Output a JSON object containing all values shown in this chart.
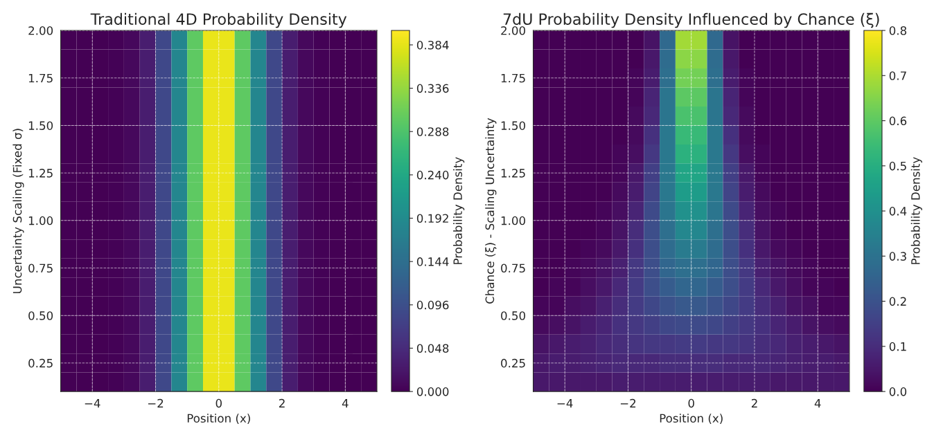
{
  "chart_data": [
    {
      "type": "heatmap",
      "title": "Traditional 4D Probability Density",
      "xlabel": "Position (x)",
      "ylabel": "Uncertainty Scaling (Fixed σ)",
      "clabel": "Probability Density",
      "x": [
        -4.75,
        -4.25,
        -3.75,
        -3.25,
        -2.75,
        -2.25,
        -1.75,
        -1.25,
        -0.75,
        -0.25,
        0.25,
        0.75,
        1.25,
        1.75,
        2.25,
        2.75,
        3.25,
        3.75,
        4.25,
        4.75
      ],
      "y": [
        0.15,
        0.25,
        0.35,
        0.45,
        0.55,
        0.65,
        0.75,
        0.85,
        0.95,
        1.05,
        1.15,
        1.25,
        1.35,
        1.45,
        1.55,
        1.65,
        1.75,
        1.85,
        1.95
      ],
      "cells": [
        [
          0,
          0,
          0,
          0.002,
          0.009,
          0.032,
          0.086,
          0.183,
          0.301,
          0.387,
          0.387,
          0.301,
          0.183,
          0.086,
          0.032,
          0.009,
          0.002,
          0,
          0,
          0
        ],
        [
          0,
          0,
          0,
          0.002,
          0.009,
          0.032,
          0.086,
          0.183,
          0.301,
          0.387,
          0.387,
          0.301,
          0.183,
          0.086,
          0.032,
          0.009,
          0.002,
          0,
          0,
          0
        ],
        [
          0,
          0,
          0,
          0.002,
          0.009,
          0.032,
          0.086,
          0.183,
          0.301,
          0.387,
          0.387,
          0.301,
          0.183,
          0.086,
          0.032,
          0.009,
          0.002,
          0,
          0,
          0
        ],
        [
          0,
          0,
          0,
          0.002,
          0.009,
          0.032,
          0.086,
          0.183,
          0.301,
          0.387,
          0.387,
          0.301,
          0.183,
          0.086,
          0.032,
          0.009,
          0.002,
          0,
          0,
          0
        ],
        [
          0,
          0,
          0,
          0.002,
          0.009,
          0.032,
          0.086,
          0.183,
          0.301,
          0.387,
          0.387,
          0.301,
          0.183,
          0.086,
          0.032,
          0.009,
          0.002,
          0,
          0,
          0
        ],
        [
          0,
          0,
          0,
          0.002,
          0.009,
          0.032,
          0.086,
          0.183,
          0.301,
          0.387,
          0.387,
          0.301,
          0.183,
          0.086,
          0.032,
          0.009,
          0.002,
          0,
          0,
          0
        ],
        [
          0,
          0,
          0,
          0.002,
          0.009,
          0.032,
          0.086,
          0.183,
          0.301,
          0.387,
          0.387,
          0.301,
          0.183,
          0.086,
          0.032,
          0.009,
          0.002,
          0,
          0,
          0
        ],
        [
          0,
          0,
          0,
          0.002,
          0.009,
          0.032,
          0.086,
          0.183,
          0.301,
          0.387,
          0.387,
          0.301,
          0.183,
          0.086,
          0.032,
          0.009,
          0.002,
          0,
          0,
          0
        ],
        [
          0,
          0,
          0,
          0.002,
          0.009,
          0.032,
          0.086,
          0.183,
          0.301,
          0.387,
          0.387,
          0.301,
          0.183,
          0.086,
          0.032,
          0.009,
          0.002,
          0,
          0,
          0
        ],
        [
          0,
          0,
          0,
          0.002,
          0.009,
          0.032,
          0.086,
          0.183,
          0.301,
          0.387,
          0.387,
          0.301,
          0.183,
          0.086,
          0.032,
          0.009,
          0.002,
          0,
          0,
          0
        ],
        [
          0,
          0,
          0,
          0.002,
          0.009,
          0.032,
          0.086,
          0.183,
          0.301,
          0.387,
          0.387,
          0.301,
          0.183,
          0.086,
          0.032,
          0.009,
          0.002,
          0,
          0,
          0
        ],
        [
          0,
          0,
          0,
          0.002,
          0.009,
          0.032,
          0.086,
          0.183,
          0.301,
          0.387,
          0.387,
          0.301,
          0.183,
          0.086,
          0.032,
          0.009,
          0.002,
          0,
          0,
          0
        ],
        [
          0,
          0,
          0,
          0.002,
          0.009,
          0.032,
          0.086,
          0.183,
          0.301,
          0.387,
          0.387,
          0.301,
          0.183,
          0.086,
          0.032,
          0.009,
          0.002,
          0,
          0,
          0
        ],
        [
          0,
          0,
          0,
          0.002,
          0.009,
          0.032,
          0.086,
          0.183,
          0.301,
          0.387,
          0.387,
          0.301,
          0.183,
          0.086,
          0.032,
          0.009,
          0.002,
          0,
          0,
          0
        ],
        [
          0,
          0,
          0,
          0.002,
          0.009,
          0.032,
          0.086,
          0.183,
          0.301,
          0.387,
          0.387,
          0.301,
          0.183,
          0.086,
          0.032,
          0.009,
          0.002,
          0,
          0,
          0
        ],
        [
          0,
          0,
          0,
          0.002,
          0.009,
          0.032,
          0.086,
          0.183,
          0.301,
          0.387,
          0.387,
          0.301,
          0.183,
          0.086,
          0.032,
          0.009,
          0.002,
          0,
          0,
          0
        ],
        [
          0,
          0,
          0,
          0.002,
          0.009,
          0.032,
          0.086,
          0.183,
          0.301,
          0.387,
          0.387,
          0.301,
          0.183,
          0.086,
          0.032,
          0.009,
          0.002,
          0,
          0,
          0
        ],
        [
          0,
          0,
          0,
          0.002,
          0.009,
          0.032,
          0.086,
          0.183,
          0.301,
          0.387,
          0.387,
          0.301,
          0.183,
          0.086,
          0.032,
          0.009,
          0.002,
          0,
          0,
          0
        ],
        [
          0,
          0,
          0,
          0.002,
          0.009,
          0.032,
          0.086,
          0.183,
          0.301,
          0.387,
          0.387,
          0.301,
          0.183,
          0.086,
          0.032,
          0.009,
          0.002,
          0,
          0,
          0
        ]
      ],
      "xlim": [
        -5,
        5
      ],
      "xticks": [
        -4,
        -2,
        0,
        2,
        4
      ],
      "ylim": [
        0.1,
        2.0
      ],
      "yticks": [
        {
          "value": 0.25,
          "label": "0.25"
        },
        {
          "value": 0.5,
          "label": "0.50"
        },
        {
          "value": 0.75,
          "label": "0.75"
        },
        {
          "value": 1.0,
          "label": "1.00"
        },
        {
          "value": 1.25,
          "label": "1.25"
        },
        {
          "value": 1.5,
          "label": "1.50"
        },
        {
          "value": 1.75,
          "label": "1.75"
        },
        {
          "value": 2.0,
          "label": "2.00"
        }
      ],
      "clim": [
        0,
        0.4
      ],
      "cticks": [
        {
          "value": 0,
          "label": "0.000"
        },
        {
          "value": 0.048,
          "label": "0.048"
        },
        {
          "value": 0.096,
          "label": "0.096"
        },
        {
          "value": 0.144,
          "label": "0.144"
        },
        {
          "value": 0.192,
          "label": "0.192"
        },
        {
          "value": 0.24,
          "label": "0.240"
        },
        {
          "value": 0.288,
          "label": "0.288"
        },
        {
          "value": 0.336,
          "label": "0.336"
        },
        {
          "value": 0.384,
          "label": "0.384"
        }
      ],
      "grid": true
    },
    {
      "type": "heatmap",
      "title": "7dU Probability Density Influenced by Chance (ξ)",
      "xlabel": "Position (x)",
      "ylabel": "Chance (ξ) - Scaling Uncertainty",
      "clabel": "Probability Density",
      "x": [
        -4.75,
        -4.25,
        -3.75,
        -3.25,
        -2.75,
        -2.25,
        -1.75,
        -1.25,
        -0.75,
        -0.25,
        0.25,
        0.75,
        1.25,
        1.75,
        2.25,
        2.75,
        3.25,
        3.75,
        4.25,
        4.75
      ],
      "y": [
        0.15,
        0.25,
        0.35,
        0.45,
        0.55,
        0.65,
        0.75,
        0.85,
        0.95,
        1.05,
        1.15,
        1.25,
        1.35,
        1.45,
        1.55,
        1.65,
        1.75,
        1.85,
        1.95
      ],
      "cells": [
        [
          0.05,
          0.05,
          0.05,
          0.05,
          0.05,
          0.06,
          0.06,
          0.06,
          0.06,
          0.06,
          0.06,
          0.06,
          0.06,
          0.06,
          0.06,
          0.05,
          0.05,
          0.05,
          0.05,
          0.05
        ],
        [
          0.05,
          0.06,
          0.06,
          0.07,
          0.08,
          0.09,
          0.09,
          0.09,
          0.1,
          0.1,
          0.1,
          0.1,
          0.09,
          0.09,
          0.09,
          0.08,
          0.07,
          0.06,
          0.06,
          0.05
        ],
        [
          0.04,
          0.05,
          0.06,
          0.07,
          0.09,
          0.1,
          0.12,
          0.13,
          0.13,
          0.14,
          0.14,
          0.13,
          0.13,
          0.12,
          0.1,
          0.09,
          0.07,
          0.06,
          0.05,
          0.04
        ],
        [
          0.02,
          0.03,
          0.04,
          0.06,
          0.08,
          0.11,
          0.13,
          0.15,
          0.17,
          0.18,
          0.18,
          0.17,
          0.15,
          0.13,
          0.11,
          0.08,
          0.06,
          0.04,
          0.03,
          0.02
        ],
        [
          0.01,
          0.01,
          0.03,
          0.04,
          0.07,
          0.1,
          0.14,
          0.17,
          0.2,
          0.22,
          0.22,
          0.2,
          0.17,
          0.14,
          0.1,
          0.07,
          0.04,
          0.03,
          0.01,
          0.01
        ],
        [
          0.0,
          0.01,
          0.01,
          0.03,
          0.05,
          0.09,
          0.14,
          0.19,
          0.23,
          0.26,
          0.26,
          0.23,
          0.19,
          0.14,
          0.09,
          0.05,
          0.03,
          0.01,
          0.01,
          0.0
        ],
        [
          0.0,
          0.0,
          0.01,
          0.02,
          0.04,
          0.07,
          0.13,
          0.19,
          0.26,
          0.29,
          0.29,
          0.26,
          0.19,
          0.13,
          0.07,
          0.04,
          0.02,
          0.01,
          0.0,
          0.0
        ],
        [
          0.0,
          0.0,
          0.0,
          0.01,
          0.02,
          0.05,
          0.11,
          0.19,
          0.28,
          0.33,
          0.33,
          0.28,
          0.19,
          0.11,
          0.05,
          0.02,
          0.01,
          0.0,
          0.0,
          0.0
        ],
        [
          0.0,
          0.0,
          0.0,
          0.0,
          0.01,
          0.04,
          0.1,
          0.19,
          0.29,
          0.37,
          0.37,
          0.29,
          0.19,
          0.1,
          0.04,
          0.01,
          0.0,
          0.0,
          0.0,
          0.0
        ],
        [
          0.0,
          0.0,
          0.0,
          0.0,
          0.01,
          0.03,
          0.08,
          0.18,
          0.31,
          0.4,
          0.4,
          0.31,
          0.18,
          0.08,
          0.03,
          0.01,
          0.0,
          0.0,
          0.0,
          0.0
        ],
        [
          0.0,
          0.0,
          0.0,
          0.0,
          0.0,
          0.02,
          0.06,
          0.16,
          0.32,
          0.44,
          0.44,
          0.32,
          0.16,
          0.06,
          0.02,
          0.0,
          0.0,
          0.0,
          0.0,
          0.0
        ],
        [
          0.0,
          0.0,
          0.0,
          0.0,
          0.0,
          0.01,
          0.05,
          0.15,
          0.32,
          0.47,
          0.47,
          0.32,
          0.15,
          0.05,
          0.01,
          0.0,
          0.0,
          0.0,
          0.0,
          0.0
        ],
        [
          0.0,
          0.0,
          0.0,
          0.0,
          0.0,
          0.01,
          0.03,
          0.13,
          0.32,
          0.51,
          0.51,
          0.32,
          0.13,
          0.03,
          0.01,
          0.0,
          0.0,
          0.0,
          0.0,
          0.0
        ],
        [
          0.0,
          0.0,
          0.0,
          0.0,
          0.0,
          0.0,
          0.02,
          0.11,
          0.32,
          0.54,
          0.54,
          0.32,
          0.11,
          0.02,
          0.0,
          0.0,
          0.0,
          0.0,
          0.0,
          0.0
        ],
        [
          0.0,
          0.0,
          0.0,
          0.0,
          0.0,
          0.0,
          0.02,
          0.09,
          0.31,
          0.57,
          0.57,
          0.31,
          0.09,
          0.02,
          0.0,
          0.0,
          0.0,
          0.0,
          0.0,
          0.0
        ],
        [
          0.0,
          0.0,
          0.0,
          0.0,
          0.0,
          0.0,
          0.01,
          0.08,
          0.31,
          0.6,
          0.6,
          0.31,
          0.08,
          0.01,
          0.0,
          0.0,
          0.0,
          0.0,
          0.0,
          0.0
        ],
        [
          0.0,
          0.0,
          0.0,
          0.0,
          0.0,
          0.0,
          0.01,
          0.06,
          0.29,
          0.63,
          0.63,
          0.29,
          0.06,
          0.01,
          0.0,
          0.0,
          0.0,
          0.0,
          0.0,
          0.0
        ],
        [
          0.0,
          0.0,
          0.0,
          0.0,
          0.0,
          0.0,
          0.0,
          0.05,
          0.28,
          0.66,
          0.66,
          0.28,
          0.05,
          0.0,
          0.0,
          0.0,
          0.0,
          0.0,
          0.0,
          0.0
        ],
        [
          0.0,
          0.0,
          0.0,
          0.0,
          0.0,
          0.0,
          0.0,
          0.04,
          0.27,
          0.69,
          0.69,
          0.27,
          0.04,
          0.0,
          0.0,
          0.0,
          0.0,
          0.0,
          0.0,
          0.0
        ]
      ],
      "xlim": [
        -5,
        5
      ],
      "xticks": [
        -4,
        -2,
        0,
        2,
        4
      ],
      "ylim": [
        0.1,
        2.0
      ],
      "yticks": [
        {
          "value": 0.25,
          "label": "0.25"
        },
        {
          "value": 0.5,
          "label": "0.50"
        },
        {
          "value": 0.75,
          "label": "0.75"
        },
        {
          "value": 1.0,
          "label": "1.00"
        },
        {
          "value": 1.25,
          "label": "1.25"
        },
        {
          "value": 1.5,
          "label": "1.50"
        },
        {
          "value": 1.75,
          "label": "1.75"
        },
        {
          "value": 2.0,
          "label": "2.00"
        }
      ],
      "clim": [
        0,
        0.8
      ],
      "cticks": [
        {
          "value": 0,
          "label": "0.0"
        },
        {
          "value": 0.1,
          "label": "0.1"
        },
        {
          "value": 0.2,
          "label": "0.2"
        },
        {
          "value": 0.3,
          "label": "0.3"
        },
        {
          "value": 0.4,
          "label": "0.4"
        },
        {
          "value": 0.5,
          "label": "0.5"
        },
        {
          "value": 0.6,
          "label": "0.6"
        },
        {
          "value": 0.7,
          "label": "0.7"
        },
        {
          "value": 0.8,
          "label": "0.8"
        }
      ],
      "grid": true
    }
  ]
}
